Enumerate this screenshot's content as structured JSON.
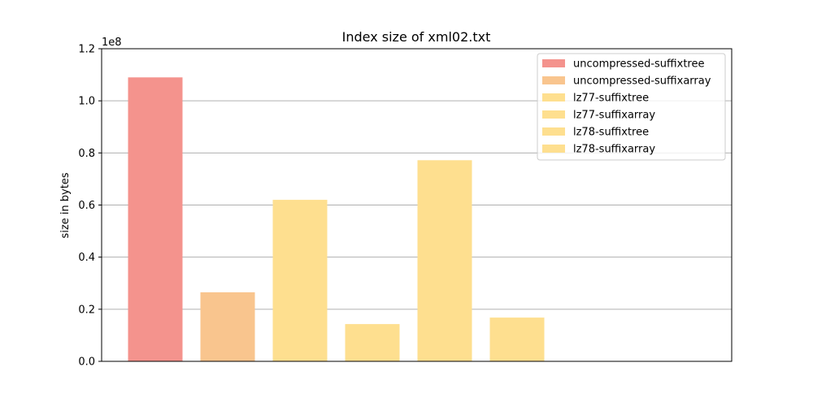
{
  "chart_data": {
    "type": "bar",
    "title": "Index size of xml02.txt",
    "xlabel": "",
    "ylabel": "size in bytes",
    "y_scale_label": "1e8",
    "ylim": [
      0,
      1.2
    ],
    "yticks": [
      "0.0",
      "0.2",
      "0.4",
      "0.6",
      "0.8",
      "1.0",
      "1.2"
    ],
    "grid": "y",
    "legend_position": "top-right",
    "series": [
      {
        "name": "uncompressed-suffixtree",
        "value": 1.09,
        "color": "#f4938d"
      },
      {
        "name": "uncompressed-suffixarray",
        "value": 0.265,
        "color": "#f9c58e"
      },
      {
        "name": "lz77-suffixtree",
        "value": 0.62,
        "color": "#fedf8f"
      },
      {
        "name": "lz77-suffixarray",
        "value": 0.143,
        "color": "#fedf8f"
      },
      {
        "name": "lz78-suffixtree",
        "value": 0.772,
        "color": "#fedf8f"
      },
      {
        "name": "lz78-suffixarray",
        "value": 0.168,
        "color": "#fedf8f"
      }
    ]
  }
}
